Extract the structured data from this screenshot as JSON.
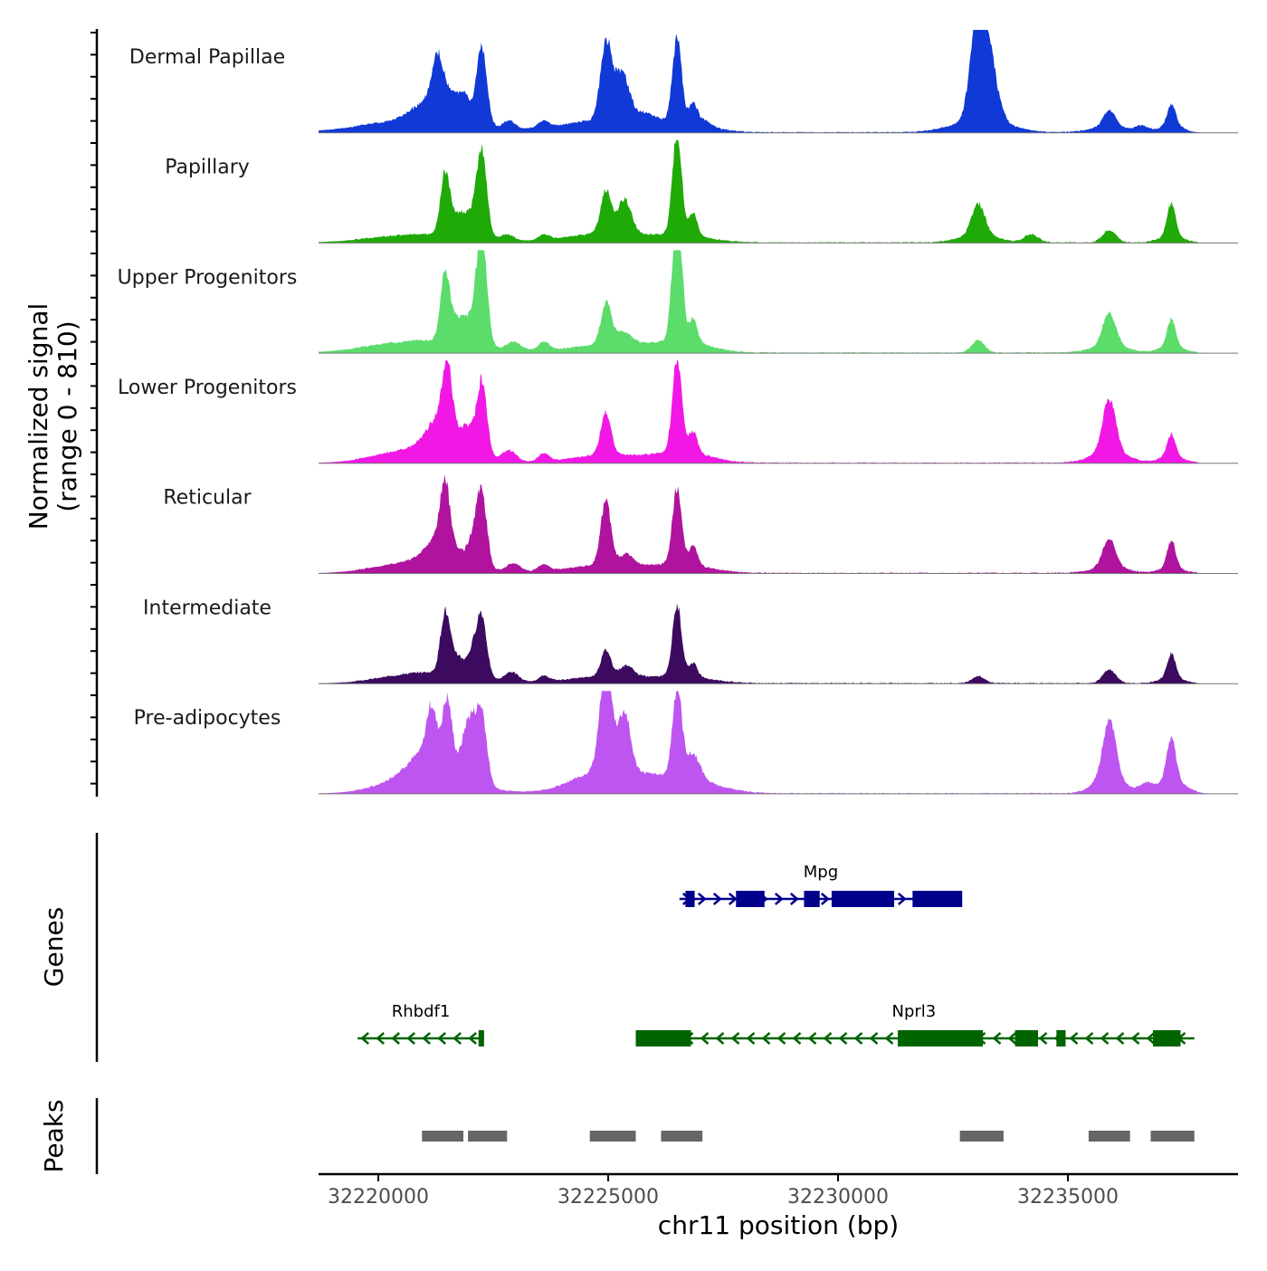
{
  "chart_data": {
    "type": "area",
    "chromosome": "chr11",
    "xlabel": "chr11 position (bp)",
    "xlim": [
      32218700,
      32238700
    ],
    "x_ticks": [
      32220000,
      32225000,
      32230000,
      32235000
    ],
    "x_tick_labels": [
      "32220000",
      "32225000",
      "32230000",
      "32235000"
    ],
    "ylabel_line1": "Normalized signal",
    "ylabel_line2": "(range 0 - 810)",
    "ylim": [
      0,
      810
    ],
    "genes_label": "Genes",
    "peaks_label": "Peaks",
    "tracks": [
      {
        "name": "Dermal Papillae",
        "color": "#1039D6",
        "noise": [
          32219500,
          32237600
        ],
        "peaks": [
          [
            32220900,
            1200,
            90
          ],
          [
            32221300,
            120,
            330
          ],
          [
            32221200,
            400,
            160
          ],
          [
            32221650,
            150,
            120
          ],
          [
            32221900,
            120,
            150
          ],
          [
            32222250,
            110,
            580
          ],
          [
            32222850,
            120,
            60
          ],
          [
            32223600,
            120,
            50
          ],
          [
            32224950,
            120,
            560
          ],
          [
            32225300,
            160,
            350
          ],
          [
            32224950,
            900,
            90
          ],
          [
            32225800,
            200,
            60
          ],
          [
            32226500,
            100,
            620
          ],
          [
            32226850,
            90,
            140
          ],
          [
            32226600,
            600,
            60
          ],
          [
            32227100,
            150,
            40
          ],
          [
            32233050,
            160,
            790
          ],
          [
            32233300,
            180,
            380
          ],
          [
            32233100,
            600,
            90
          ],
          [
            32235900,
            130,
            120
          ],
          [
            32235900,
            400,
            40
          ],
          [
            32236600,
            140,
            40
          ],
          [
            32237250,
            90,
            160
          ],
          [
            32237250,
            250,
            50
          ]
        ]
      },
      {
        "name": "Papillary",
        "color": "#1FAA08",
        "noise": [
          32219500,
          32237800
        ],
        "peaks": [
          [
            32221000,
            1100,
            60
          ],
          [
            32221450,
            100,
            430
          ],
          [
            32221700,
            160,
            140
          ],
          [
            32222000,
            150,
            140
          ],
          [
            32222250,
            110,
            620
          ],
          [
            32222800,
            150,
            40
          ],
          [
            32223600,
            120,
            40
          ],
          [
            32224950,
            110,
            310
          ],
          [
            32225350,
            150,
            250
          ],
          [
            32224950,
            800,
            70
          ],
          [
            32226500,
            100,
            740
          ],
          [
            32226850,
            90,
            170
          ],
          [
            32226600,
            600,
            50
          ],
          [
            32233050,
            140,
            230
          ],
          [
            32233050,
            400,
            60
          ],
          [
            32234200,
            150,
            60
          ],
          [
            32235900,
            150,
            90
          ],
          [
            32237250,
            90,
            240
          ],
          [
            32237250,
            250,
            50
          ]
        ]
      },
      {
        "name": "Upper Progenitors",
        "color": "#5CDC6A",
        "noise": [
          32219500,
          32237800
        ],
        "peaks": [
          [
            32221000,
            1100,
            90
          ],
          [
            32221450,
            100,
            480
          ],
          [
            32221700,
            160,
            160
          ],
          [
            32222000,
            150,
            160
          ],
          [
            32222250,
            110,
            830
          ],
          [
            32222950,
            150,
            60
          ],
          [
            32223600,
            120,
            60
          ],
          [
            32224950,
            110,
            290
          ],
          [
            32225300,
            200,
            90
          ],
          [
            32225000,
            800,
            60
          ],
          [
            32226500,
            100,
            1010
          ],
          [
            32226850,
            90,
            170
          ],
          [
            32226600,
            600,
            80
          ],
          [
            32233050,
            140,
            90
          ],
          [
            32235900,
            140,
            250
          ],
          [
            32235900,
            400,
            50
          ],
          [
            32237250,
            90,
            200
          ],
          [
            32237250,
            250,
            50
          ]
        ]
      },
      {
        "name": "Lower Progenitors",
        "color": "#F118E6",
        "noise": [
          32219500,
          32237800
        ],
        "peaks": [
          [
            32221400,
            300,
            260
          ],
          [
            32221000,
            900,
            110
          ],
          [
            32221500,
            100,
            440
          ],
          [
            32221950,
            120,
            160
          ],
          [
            32222250,
            110,
            560
          ],
          [
            32222850,
            150,
            80
          ],
          [
            32223600,
            120,
            60
          ],
          [
            32224950,
            110,
            310
          ],
          [
            32224950,
            700,
            60
          ],
          [
            32226500,
            100,
            700
          ],
          [
            32226850,
            90,
            160
          ],
          [
            32226600,
            600,
            80
          ],
          [
            32235900,
            140,
            390
          ],
          [
            32235900,
            400,
            80
          ],
          [
            32237250,
            90,
            160
          ],
          [
            32237250,
            250,
            50
          ]
        ]
      },
      {
        "name": "Reticular",
        "color": "#B0139E",
        "noise": [
          32219500,
          32237800
        ],
        "peaks": [
          [
            32221400,
            300,
            210
          ],
          [
            32221000,
            900,
            90
          ],
          [
            32221450,
            100,
            400
          ],
          [
            32222050,
            120,
            170
          ],
          [
            32222250,
            110,
            540
          ],
          [
            32222950,
            150,
            60
          ],
          [
            32223600,
            120,
            50
          ],
          [
            32224950,
            110,
            470
          ],
          [
            32224950,
            800,
            60
          ],
          [
            32225400,
            150,
            80
          ],
          [
            32226500,
            100,
            560
          ],
          [
            32226850,
            90,
            140
          ],
          [
            32226600,
            600,
            60
          ],
          [
            32235900,
            140,
            210
          ],
          [
            32235900,
            400,
            40
          ],
          [
            32237250,
            90,
            200
          ],
          [
            32237250,
            250,
            40
          ]
        ]
      },
      {
        "name": "Intermediate",
        "color": "#3C0A5F",
        "noise": [
          32219500,
          32237800
        ],
        "peaks": [
          [
            32221100,
            900,
            80
          ],
          [
            32221450,
            100,
            430
          ],
          [
            32221700,
            140,
            140
          ],
          [
            32222050,
            120,
            170
          ],
          [
            32222250,
            110,
            440
          ],
          [
            32222900,
            150,
            70
          ],
          [
            32223600,
            120,
            40
          ],
          [
            32224950,
            110,
            190
          ],
          [
            32224950,
            800,
            50
          ],
          [
            32225400,
            150,
            80
          ],
          [
            32226500,
            100,
            510
          ],
          [
            32226850,
            90,
            100
          ],
          [
            32226600,
            600,
            50
          ],
          [
            32233050,
            140,
            50
          ],
          [
            32235900,
            140,
            100
          ],
          [
            32237250,
            90,
            180
          ],
          [
            32237250,
            250,
            40
          ]
        ]
      },
      {
        "name": "Pre-adipocytes",
        "color": "#BE55F0",
        "noise": [
          32219500,
          32237800
        ],
        "peaks": [
          [
            32221200,
            500,
            230
          ],
          [
            32221100,
            900,
            110
          ],
          [
            32221150,
            100,
            320
          ],
          [
            32221500,
            100,
            410
          ],
          [
            32221900,
            100,
            240
          ],
          [
            32222050,
            100,
            300
          ],
          [
            32222250,
            110,
            520
          ],
          [
            32224950,
            130,
            740
          ],
          [
            32225350,
            130,
            420
          ],
          [
            32225000,
            700,
            180
          ],
          [
            32226500,
            100,
            650
          ],
          [
            32226850,
            150,
            180
          ],
          [
            32226600,
            700,
            110
          ],
          [
            32235900,
            130,
            410
          ],
          [
            32235900,
            300,
            150
          ],
          [
            32236700,
            150,
            60
          ],
          [
            32237250,
            100,
            320
          ],
          [
            32237250,
            300,
            90
          ]
        ]
      }
    ],
    "genes": [
      {
        "name": "Mpg",
        "strand": "+",
        "color": "#00008B",
        "row": 1,
        "start": 32226550,
        "end": 32232700,
        "exons": [
          [
            32226680,
            32226880,
            "narrow"
          ],
          [
            32227780,
            32228400,
            "wide"
          ],
          [
            32229260,
            32229600,
            "wide"
          ],
          [
            32229860,
            32231220,
            "wide"
          ],
          [
            32231620,
            32232700,
            "wide"
          ]
        ]
      },
      {
        "name": "Rhbdf1",
        "strand": "-",
        "color": "#006400",
        "row": 2,
        "start": 32219550,
        "end": 32222300,
        "exons": [
          [
            32222180,
            32222300,
            "narrow"
          ]
        ]
      },
      {
        "name": "Nprl3",
        "strand": "-",
        "color": "#006400",
        "row": 2,
        "start": 32225600,
        "end": 32237750,
        "exons": [
          [
            32225600,
            32226800,
            "wide"
          ],
          [
            32231300,
            32233150,
            "wide"
          ],
          [
            32233850,
            32234350,
            "wide"
          ],
          [
            32234750,
            32234950,
            "wide"
          ],
          [
            32236850,
            32237450,
            "wide"
          ]
        ]
      }
    ],
    "peak_regions": [
      [
        32220950,
        32221850
      ],
      [
        32221950,
        32222800
      ],
      [
        32224600,
        32225600
      ],
      [
        32226150,
        32227050
      ],
      [
        32232650,
        32233600
      ],
      [
        32235450,
        32236350
      ],
      [
        32236800,
        32237750
      ]
    ]
  }
}
